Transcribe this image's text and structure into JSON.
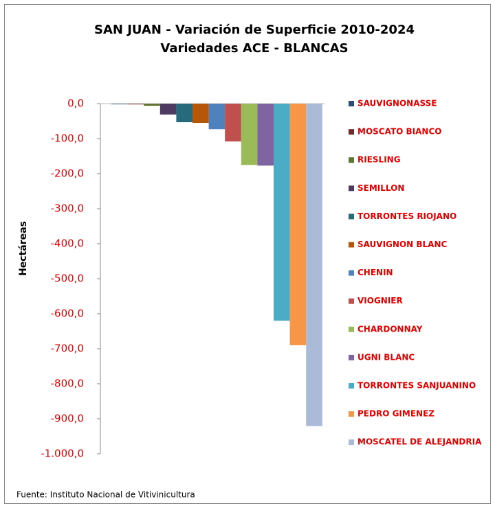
{
  "chart_data": {
    "type": "bar",
    "title": "SAN JUAN - Variación de Superficie  2010-2024",
    "subtitle": "Variedades ACE - BLANCAS",
    "y_label": "Hectáreas",
    "source": "Fuente: Instituto Nacional de Vitivinicultura",
    "ylim": [
      -1000,
      0
    ],
    "yticks": [
      {
        "value": 0,
        "label": "0,0"
      },
      {
        "value": -100,
        "label": "-100,0"
      },
      {
        "value": -200,
        "label": "-200,0"
      },
      {
        "value": -300,
        "label": "-300,0"
      },
      {
        "value": -400,
        "label": "-400,0"
      },
      {
        "value": -500,
        "label": "-500,0"
      },
      {
        "value": -600,
        "label": "-600,0"
      },
      {
        "value": -700,
        "label": "-700,0"
      },
      {
        "value": -800,
        "label": "-800,0"
      },
      {
        "value": -900,
        "label": "-900,0"
      },
      {
        "value": -1000,
        "label": "-1.000,0"
      }
    ],
    "legend": "right",
    "series": [
      {
        "name": "SAUVIGNONASSE",
        "color": "#2C4D75",
        "values": [
          -1
        ]
      },
      {
        "name": "MOSCATO BIANCO",
        "color": "#772C2A",
        "values": [
          -2
        ]
      },
      {
        "name": "RIESLING",
        "color": "#5F7530",
        "values": [
          -6
        ]
      },
      {
        "name": "SEMILLON",
        "color": "#4D3B62",
        "values": [
          -31
        ]
      },
      {
        "name": "TORRONTES RIOJANO",
        "color": "#276A7C",
        "values": [
          -53
        ]
      },
      {
        "name": "SAUVIGNON BLANC",
        "color": "#B65708",
        "values": [
          -55
        ]
      },
      {
        "name": "CHENIN",
        "color": "#4F81BD",
        "values": [
          -73
        ]
      },
      {
        "name": "VIOGNIER",
        "color": "#C0504D",
        "values": [
          -108
        ]
      },
      {
        "name": "CHARDONNAY",
        "color": "#9BBB59",
        "values": [
          -175
        ]
      },
      {
        "name": "UGNI BLANC",
        "color": "#8064A2",
        "values": [
          -177
        ]
      },
      {
        "name": "TORRONTES SANJUANINO",
        "color": "#4BACC6",
        "values": [
          -620
        ]
      },
      {
        "name": "PEDRO GIMENEZ",
        "color": "#F79646",
        "values": [
          -690
        ]
      },
      {
        "name": "MOSCATEL DE ALEJANDRIA",
        "color": "#AABAD7",
        "values": [
          -921
        ]
      }
    ]
  }
}
